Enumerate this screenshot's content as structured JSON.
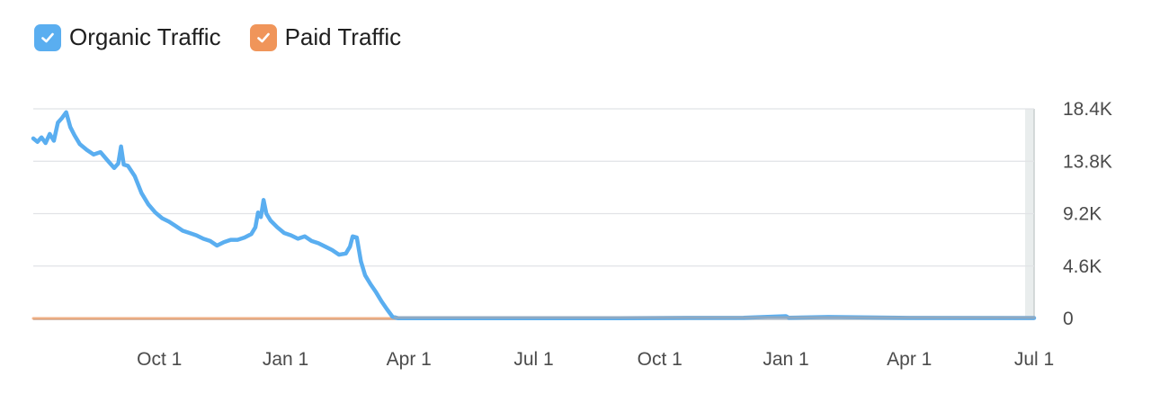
{
  "legend": {
    "items": [
      {
        "label": "Organic Traffic",
        "color": "#5aaef0",
        "checked": true,
        "icon": "checkmark-icon"
      },
      {
        "label": "Paid Traffic",
        "color": "#f0955a",
        "checked": true,
        "icon": "checkmark-icon"
      }
    ]
  },
  "chart_data": {
    "type": "line",
    "title": "",
    "xlabel": "",
    "ylabel": "",
    "ylim": [
      0,
      18400
    ],
    "y_ticks": [
      {
        "label": "18.4K",
        "value": 18400
      },
      {
        "label": "13.8K",
        "value": 13800
      },
      {
        "label": "9.2K",
        "value": 9200
      },
      {
        "label": "4.6K",
        "value": 4600
      },
      {
        "label": "0",
        "value": 0
      }
    ],
    "x_range": [
      "2021-07-01",
      "2023-07-01"
    ],
    "x_ticks": [
      {
        "label": "Oct 1",
        "date": "2021-10-01"
      },
      {
        "label": "Jan 1",
        "date": "2022-01-01"
      },
      {
        "label": "Apr 1",
        "date": "2022-04-01"
      },
      {
        "label": "Jul 1",
        "date": "2022-07-01"
      },
      {
        "label": "Oct 1",
        "date": "2022-10-01"
      },
      {
        "label": "Jan 1",
        "date": "2023-01-01"
      },
      {
        "label": "Apr 1",
        "date": "2023-04-01"
      },
      {
        "label": "Jul 1",
        "date": "2023-07-01"
      }
    ],
    "grid": true,
    "series": [
      {
        "name": "Organic Traffic",
        "color": "#5aaef0",
        "points": [
          [
            "2021-07-01",
            15800
          ],
          [
            "2021-07-04",
            15500
          ],
          [
            "2021-07-07",
            15900
          ],
          [
            "2021-07-10",
            15400
          ],
          [
            "2021-07-13",
            16200
          ],
          [
            "2021-07-16",
            15600
          ],
          [
            "2021-07-19",
            17200
          ],
          [
            "2021-07-22",
            17600
          ],
          [
            "2021-07-25",
            18100
          ],
          [
            "2021-07-28",
            16800
          ],
          [
            "2021-07-31",
            16100
          ],
          [
            "2021-08-04",
            15300
          ],
          [
            "2021-08-09",
            14800
          ],
          [
            "2021-08-14",
            14400
          ],
          [
            "2021-08-19",
            14600
          ],
          [
            "2021-08-24",
            13900
          ],
          [
            "2021-08-29",
            13200
          ],
          [
            "2021-09-01",
            13600
          ],
          [
            "2021-09-03",
            15100
          ],
          [
            "2021-09-05",
            13500
          ],
          [
            "2021-09-08",
            13400
          ],
          [
            "2021-09-13",
            12500
          ],
          [
            "2021-09-18",
            11000
          ],
          [
            "2021-09-23",
            10000
          ],
          [
            "2021-09-28",
            9300
          ],
          [
            "2021-10-03",
            8800
          ],
          [
            "2021-10-08",
            8500
          ],
          [
            "2021-10-13",
            8100
          ],
          [
            "2021-10-18",
            7700
          ],
          [
            "2021-10-23",
            7500
          ],
          [
            "2021-10-28",
            7300
          ],
          [
            "2021-11-02",
            7000
          ],
          [
            "2021-11-07",
            6800
          ],
          [
            "2021-11-12",
            6400
          ],
          [
            "2021-11-17",
            6700
          ],
          [
            "2021-11-22",
            6900
          ],
          [
            "2021-11-27",
            6900
          ],
          [
            "2021-12-02",
            7100
          ],
          [
            "2021-12-07",
            7400
          ],
          [
            "2021-12-10",
            8000
          ],
          [
            "2021-12-12",
            9300
          ],
          [
            "2021-12-14",
            8900
          ],
          [
            "2021-12-16",
            10400
          ],
          [
            "2021-12-18",
            9200
          ],
          [
            "2021-12-21",
            8600
          ],
          [
            "2021-12-26",
            8000
          ],
          [
            "2021-12-31",
            7500
          ],
          [
            "2022-01-05",
            7300
          ],
          [
            "2022-01-10",
            7000
          ],
          [
            "2022-01-15",
            7200
          ],
          [
            "2022-01-20",
            6800
          ],
          [
            "2022-01-25",
            6600
          ],
          [
            "2022-01-30",
            6300
          ],
          [
            "2022-02-04",
            6000
          ],
          [
            "2022-02-09",
            5600
          ],
          [
            "2022-02-14",
            5700
          ],
          [
            "2022-02-17",
            6300
          ],
          [
            "2022-02-19",
            7200
          ],
          [
            "2022-02-22",
            7100
          ],
          [
            "2022-02-25",
            5000
          ],
          [
            "2022-02-28",
            3800
          ],
          [
            "2022-03-04",
            3000
          ],
          [
            "2022-03-08",
            2300
          ],
          [
            "2022-03-12",
            1500
          ],
          [
            "2022-03-16",
            800
          ],
          [
            "2022-03-20",
            150
          ],
          [
            "2022-03-24",
            20
          ],
          [
            "2022-06-01",
            20
          ],
          [
            "2022-09-01",
            20
          ],
          [
            "2022-12-01",
            60
          ],
          [
            "2023-01-01",
            200
          ],
          [
            "2023-01-03",
            60
          ],
          [
            "2023-02-01",
            130
          ],
          [
            "2023-04-01",
            50
          ],
          [
            "2023-07-01",
            40
          ]
        ]
      },
      {
        "name": "Paid Traffic",
        "color": "#f0955a",
        "points": [
          [
            "2021-07-01",
            0
          ],
          [
            "2022-03-22",
            0
          ]
        ]
      }
    ]
  }
}
